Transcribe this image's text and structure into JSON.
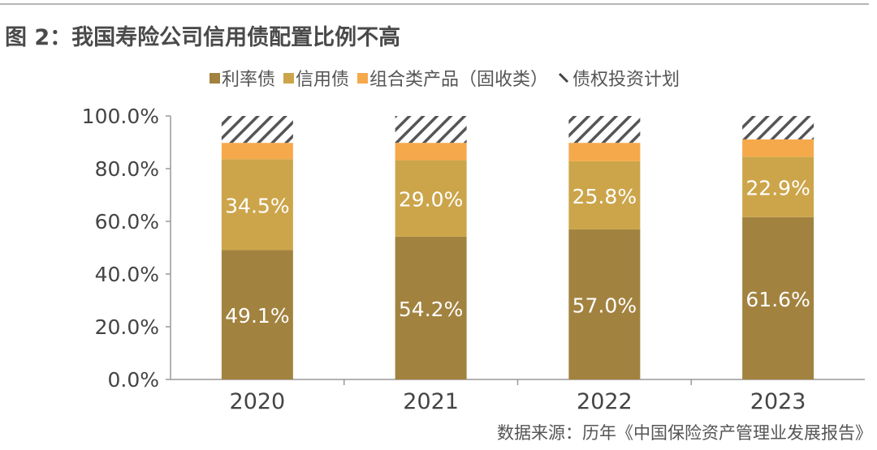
{
  "title": "图 2：我国寿险公司信用债配置比例不高",
  "source": "数据来源：历年《中国保险资产管理业发展报告》",
  "chart_data": {
    "type": "bar",
    "stacked": true,
    "categories": [
      "2020",
      "2021",
      "2022",
      "2023"
    ],
    "series": [
      {
        "name": "利率债",
        "values": [
          49.1,
          54.2,
          57.0,
          61.6
        ],
        "color": "#a2823f",
        "labels": [
          "49.1%",
          "54.2%",
          "57.0%",
          "61.6%"
        ]
      },
      {
        "name": "信用债",
        "values": [
          34.5,
          29.0,
          25.8,
          22.9
        ],
        "color": "#cca54a",
        "labels": [
          "34.5%",
          "29.0%",
          "25.8%",
          "22.9%"
        ]
      },
      {
        "name": "组合类产品（固收类）",
        "values": [
          6.2,
          6.6,
          7.0,
          6.6
        ],
        "color": "#f6a94a"
      },
      {
        "name": "债权投资计划",
        "values": [
          10.2,
          10.2,
          10.2,
          8.9
        ],
        "color": "#555555",
        "pattern": "diagonal-hatch"
      }
    ],
    "yticks": [
      "0.0%",
      "20.0%",
      "40.0%",
      "60.0%",
      "80.0%",
      "100.0%"
    ],
    "ylim": [
      0,
      100
    ],
    "grid": false,
    "legend": "top"
  }
}
